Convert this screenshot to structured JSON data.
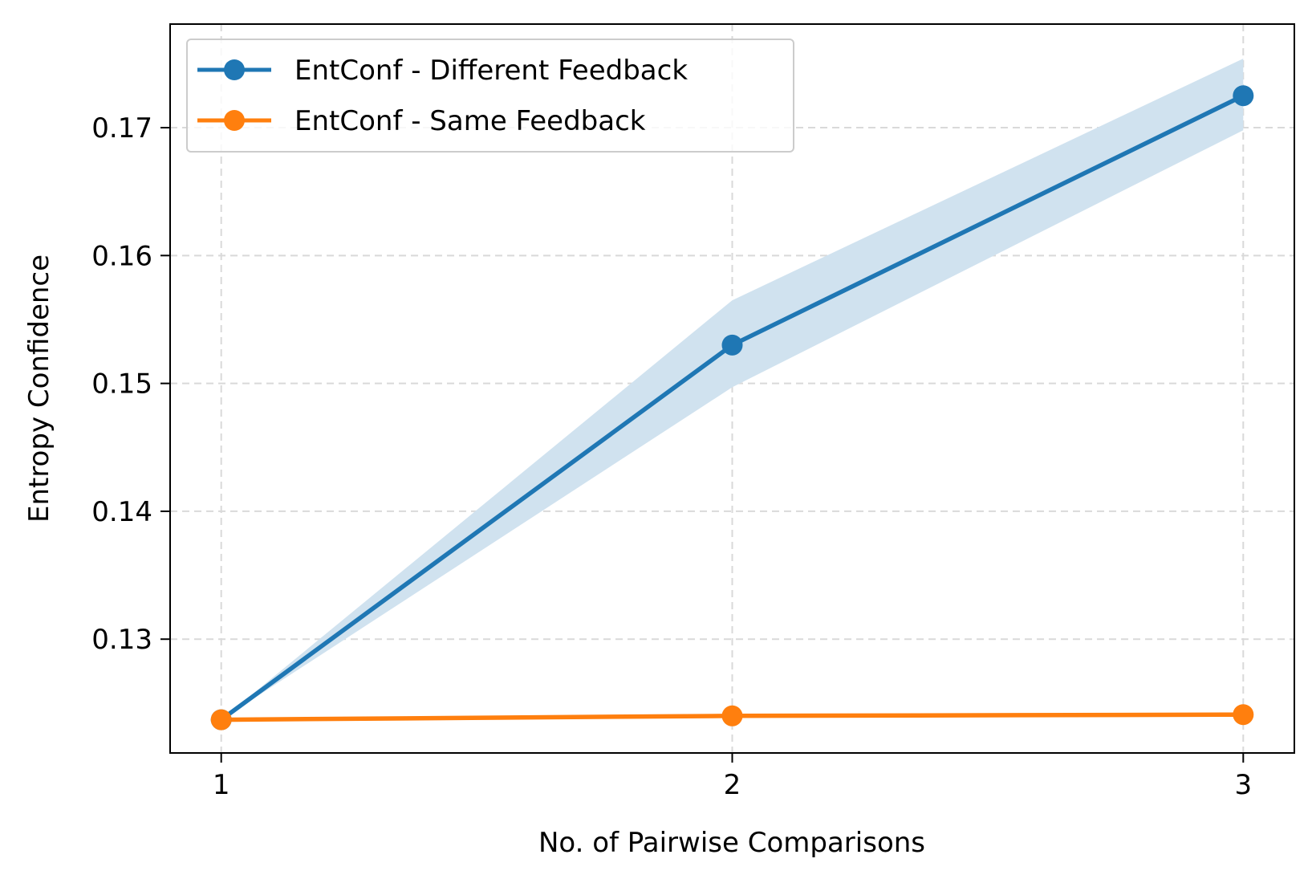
{
  "chart_data": {
    "type": "line",
    "x": [
      1,
      2,
      3
    ],
    "xticks": [
      "1",
      "2",
      "3"
    ],
    "yticks": [
      "0.13",
      "0.14",
      "0.15",
      "0.16",
      "0.17"
    ],
    "xlabel": "No. of Pairwise Comparisons",
    "ylabel": "Entropy Confidence",
    "xlim": [
      0.9,
      3.1
    ],
    "ylim": [
      0.1211,
      0.1781
    ],
    "grid": true,
    "legend_position": "top-left",
    "series": [
      {
        "name": "EntConf - Different Feedback",
        "values": [
          0.1237,
          0.153,
          0.1725
        ],
        "band_low": [
          0.1237,
          0.1497,
          0.1698
        ],
        "band_high": [
          0.1237,
          0.1565,
          0.1754
        ],
        "color": "#1f77b4",
        "band_color": "#d0e2ef"
      },
      {
        "name": "EntConf - Same Feedback",
        "values": [
          0.1237,
          0.124,
          0.1241
        ],
        "color": "#ff7f0e"
      }
    ]
  }
}
